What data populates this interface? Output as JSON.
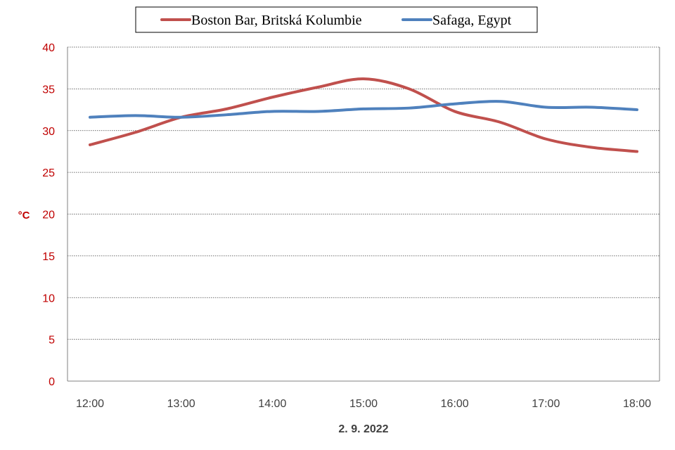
{
  "chart_data": {
    "type": "line",
    "x": [
      "12:00",
      "12:30",
      "13:00",
      "13:30",
      "14:00",
      "14:30",
      "15:00",
      "15:30",
      "16:00",
      "16:30",
      "17:00",
      "17:30",
      "18:00"
    ],
    "x_ticks": [
      "12:00",
      "13:00",
      "14:00",
      "15:00",
      "16:00",
      "17:00",
      "18:00"
    ],
    "series": [
      {
        "name": "Boston Bar, Britská Kolumbie",
        "color": "#c0504d",
        "values": [
          28.3,
          29.8,
          31.6,
          32.6,
          34.0,
          35.2,
          36.2,
          35.0,
          32.3,
          31.0,
          29.0,
          28.0,
          27.5
        ]
      },
      {
        "name": "Safaga, Egypt",
        "color": "#4f81bd",
        "values": [
          31.6,
          31.8,
          31.6,
          31.9,
          32.3,
          32.3,
          32.6,
          32.7,
          33.2,
          33.5,
          32.8,
          32.8,
          32.5
        ]
      }
    ],
    "ylim": [
      0,
      40
    ],
    "y_ticks": [
      0,
      5,
      10,
      15,
      20,
      25,
      30,
      35,
      40
    ],
    "ylabel": "°C",
    "xlabel": "2. 9. 2022",
    "grid": true,
    "legend_position": "top-center",
    "axis_label_color": "#c00000",
    "tick_label_color": "#404040"
  }
}
